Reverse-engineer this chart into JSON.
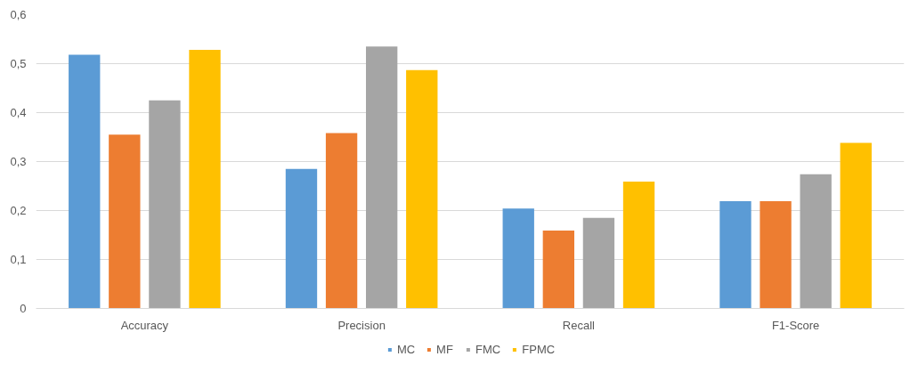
{
  "chart_data": {
    "type": "bar",
    "categories": [
      "Accuracy",
      "Precision",
      "Recall",
      "F1-Score"
    ],
    "series": [
      {
        "name": "MC",
        "color": "#5b9bd5",
        "values": [
          0.518,
          0.285,
          0.204,
          0.219
        ]
      },
      {
        "name": "MF",
        "color": "#ed7d31",
        "values": [
          0.355,
          0.358,
          0.159,
          0.219
        ]
      },
      {
        "name": "FMC",
        "color": "#a5a5a5",
        "values": [
          0.425,
          0.535,
          0.185,
          0.274
        ]
      },
      {
        "name": "FPMC",
        "color": "#ffc000",
        "values": [
          0.528,
          0.487,
          0.259,
          0.338
        ]
      }
    ],
    "ylim": [
      0,
      0.6
    ],
    "yticks": [
      {
        "value": 0,
        "label": "0"
      },
      {
        "value": 0.1,
        "label": "0,1"
      },
      {
        "value": 0.2,
        "label": "0,2"
      },
      {
        "value": 0.3,
        "label": "0,3"
      },
      {
        "value": 0.4,
        "label": "0,4"
      },
      {
        "value": 0.5,
        "label": "0,5"
      },
      {
        "value": 0.6,
        "label": "0,6"
      }
    ],
    "grid": "y",
    "legend": "bottom"
  }
}
